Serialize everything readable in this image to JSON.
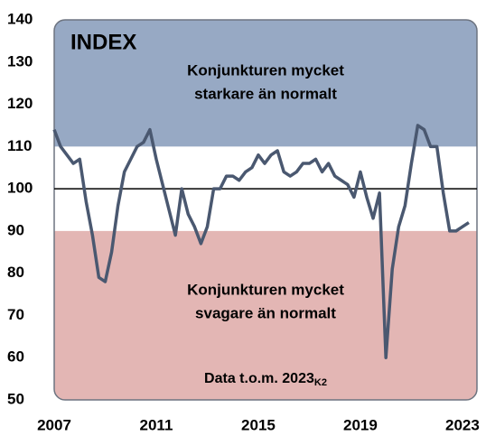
{
  "chart_data": {
    "type": "line",
    "title": "INDEX",
    "annotations": {
      "upper": [
        "Konjunkturen mycket",
        "starkare än normalt"
      ],
      "lower": [
        "Konjunkturen mycket",
        "svagare än normalt"
      ],
      "note": "Data t.o.m. 2023",
      "note_sub": "K2"
    },
    "bands": [
      {
        "from": 110,
        "to": 140,
        "color": "#97a9c4"
      },
      {
        "from": 50,
        "to": 90,
        "color": "#e3b6b4"
      }
    ],
    "reference_line": 100,
    "xlim": [
      2007,
      2023.57
    ],
    "xticks": [
      2007,
      2011,
      2015,
      2019,
      2023
    ],
    "ylim": [
      50,
      140
    ],
    "yticks": [
      50,
      60,
      70,
      80,
      90,
      100,
      110,
      120,
      130,
      140
    ],
    "x": [
      2007,
      2007.25,
      2007.5,
      2007.75,
      2008,
      2008.25,
      2008.5,
      2008.75,
      2009,
      2009.25,
      2009.5,
      2009.75,
      2010,
      2010.25,
      2010.5,
      2010.75,
      2011,
      2011.25,
      2011.5,
      2011.75,
      2012,
      2012.25,
      2012.5,
      2012.75,
      2013,
      2013.25,
      2013.5,
      2013.75,
      2014,
      2014.25,
      2014.5,
      2014.75,
      2015,
      2015.25,
      2015.5,
      2015.75,
      2016,
      2016.25,
      2016.5,
      2016.75,
      2017,
      2017.25,
      2017.5,
      2017.75,
      2018,
      2018.25,
      2018.5,
      2018.75,
      2019,
      2019.25,
      2019.5,
      2019.75,
      2020,
      2020.25,
      2020.5,
      2020.75,
      2021,
      2021.25,
      2021.5,
      2021.75,
      2022,
      2022.25,
      2022.5,
      2022.75,
      2023,
      2023.25
    ],
    "series": [
      {
        "color": "#4a5870",
        "values": [
          114,
          110,
          108,
          106,
          107,
          97,
          89,
          79,
          78,
          85,
          96,
          104,
          107,
          110,
          111,
          114,
          107,
          101,
          95,
          89,
          100,
          94,
          91,
          87,
          91,
          100,
          100,
          103,
          103,
          102,
          104,
          105,
          108,
          106,
          108,
          109,
          104,
          103,
          104,
          106,
          106,
          107,
          104,
          106,
          103,
          102,
          101,
          98,
          104,
          98,
          93,
          99,
          60,
          81,
          91,
          96,
          106,
          115,
          114,
          110,
          110,
          99,
          90,
          90,
          91,
          92
        ]
      }
    ]
  }
}
